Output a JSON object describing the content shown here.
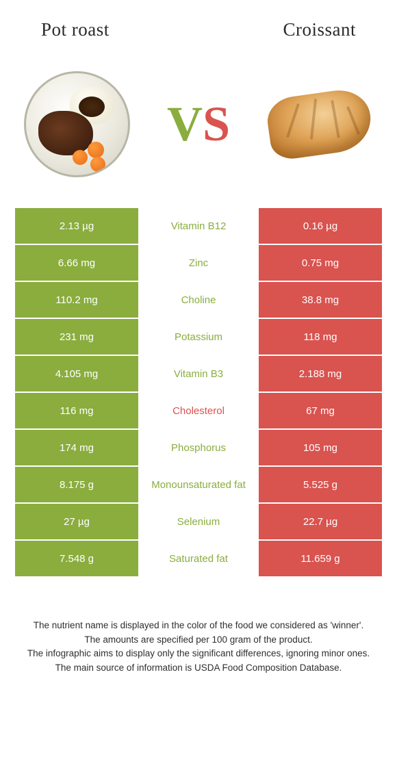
{
  "colors": {
    "food1": "#8aad3e",
    "food2": "#d9534f",
    "food1_cell": "#8aad3e",
    "food2_cell": "#d9534f"
  },
  "titles": {
    "food1": "Pot roast",
    "food2": "Croissant"
  },
  "vs": {
    "v": "V",
    "s": "S"
  },
  "rows": [
    {
      "left": "2.13 µg",
      "label": "Vitamin B12",
      "right": "0.16 µg",
      "winner": 1
    },
    {
      "left": "6.66 mg",
      "label": "Zinc",
      "right": "0.75 mg",
      "winner": 1
    },
    {
      "left": "110.2 mg",
      "label": "Choline",
      "right": "38.8 mg",
      "winner": 1
    },
    {
      "left": "231 mg",
      "label": "Potassium",
      "right": "118 mg",
      "winner": 1
    },
    {
      "left": "4.105 mg",
      "label": "Vitamin B3",
      "right": "2.188 mg",
      "winner": 1
    },
    {
      "left": "116 mg",
      "label": "Cholesterol",
      "right": "67 mg",
      "winner": 2
    },
    {
      "left": "174 mg",
      "label": "Phosphorus",
      "right": "105 mg",
      "winner": 1
    },
    {
      "left": "8.175 g",
      "label": "Monounsaturated fat",
      "right": "5.525 g",
      "winner": 1
    },
    {
      "left": "27 µg",
      "label": "Selenium",
      "right": "22.7 µg",
      "winner": 1
    },
    {
      "left": "7.548 g",
      "label": "Saturated fat",
      "right": "11.659 g",
      "winner": 1
    }
  ],
  "footer": [
    "The nutrient name is displayed in the color of the food we considered as 'winner'.",
    "The amounts are specified per 100 gram of the product.",
    "The infographic aims to display only the significant differences, ignoring minor ones.",
    "The main source of information is USDA Food Composition Database."
  ]
}
